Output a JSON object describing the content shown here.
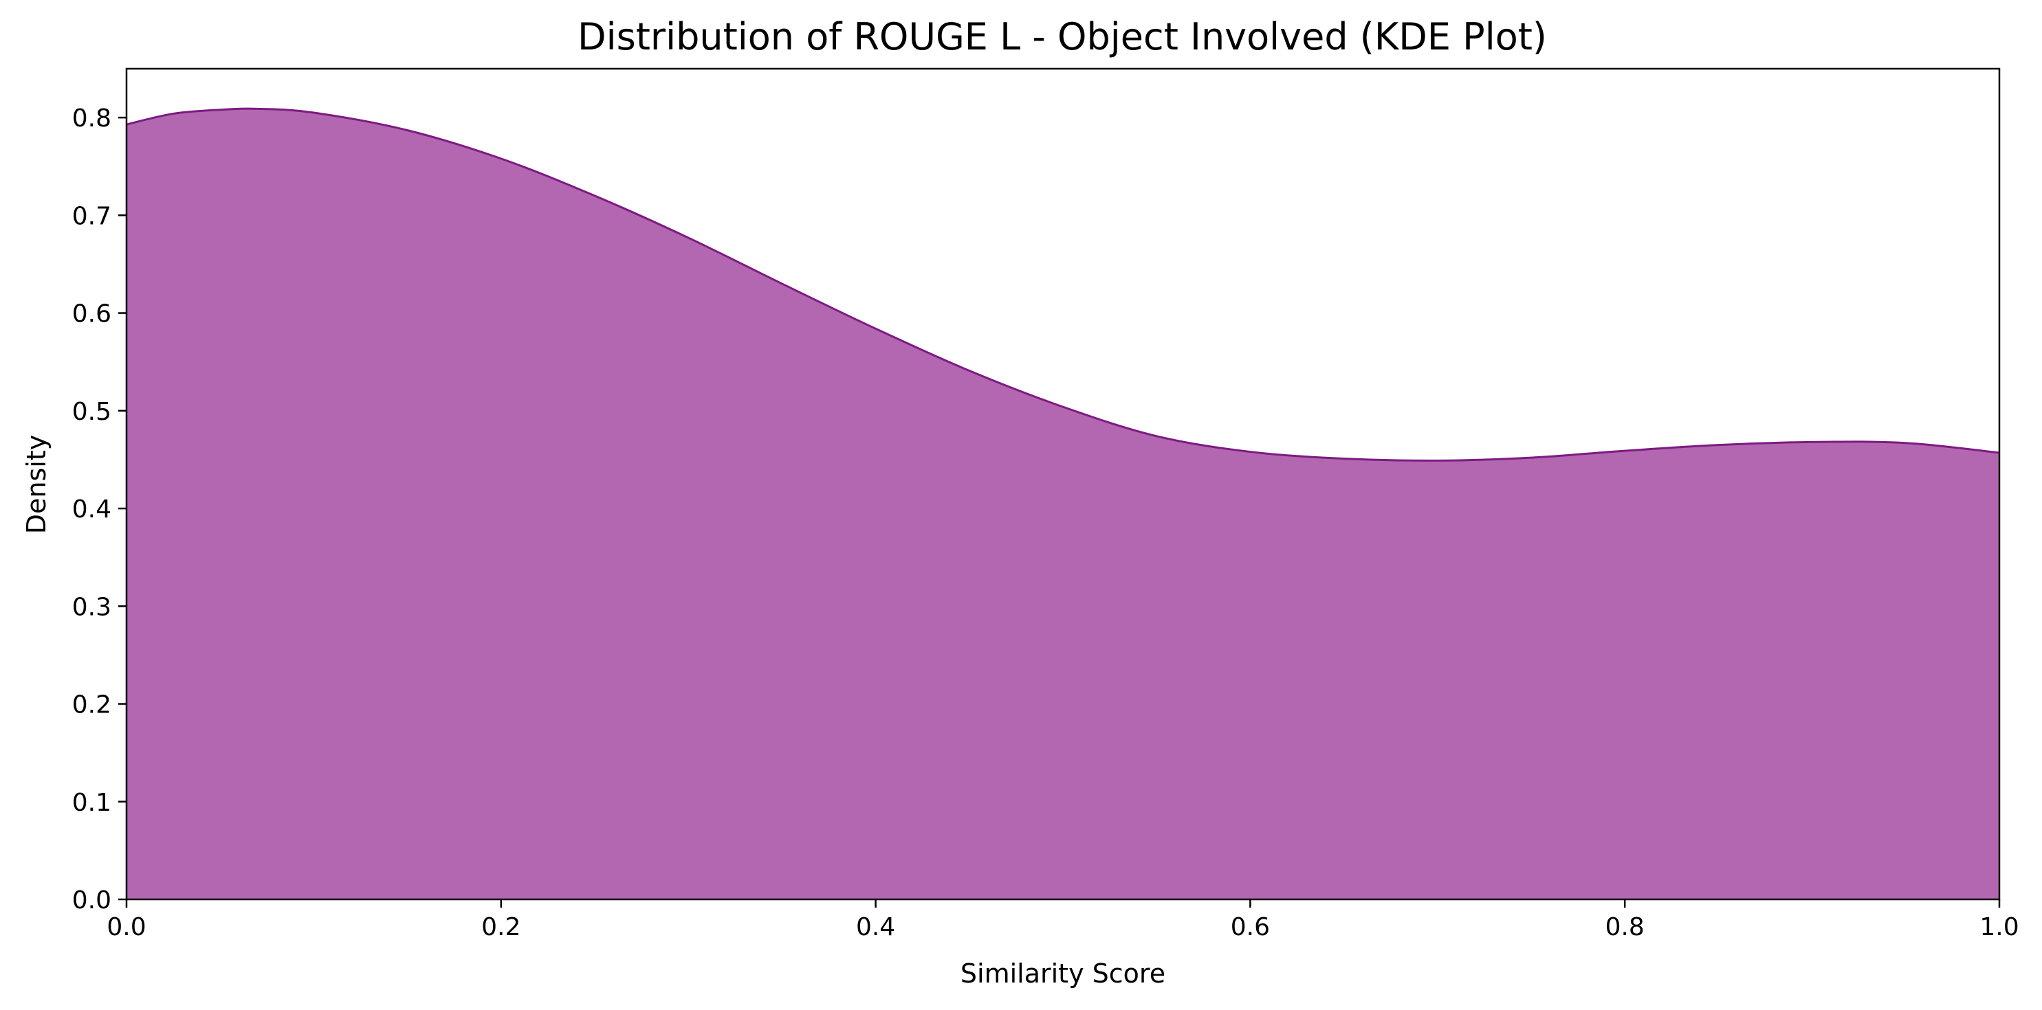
{
  "colors": {
    "fill": "#b267b0",
    "line": "#7d1b82",
    "axis": "#000000",
    "background": "#ffffff"
  },
  "chart_data": {
    "type": "area",
    "title": "Distribution of ROUGE L - Object Involved (KDE Plot)",
    "xlabel": "Similarity Score",
    "ylabel": "Density",
    "xlim": [
      0.0,
      1.0
    ],
    "ylim": [
      0.0,
      0.85
    ],
    "grid": false,
    "legend": "none",
    "xticks": [
      0.0,
      0.2,
      0.4,
      0.6,
      0.8,
      1.0
    ],
    "xtick_labels": [
      "0.0",
      "0.2",
      "0.4",
      "0.6",
      "0.8",
      "1.0"
    ],
    "yticks": [
      0.0,
      0.1,
      0.2,
      0.3,
      0.4,
      0.5,
      0.6,
      0.7,
      0.8
    ],
    "ytick_labels": [
      "0.0",
      "0.1",
      "0.2",
      "0.3",
      "0.4",
      "0.5",
      "0.6",
      "0.7",
      "0.8"
    ],
    "series": [
      {
        "name": "ROUGE L - Object Involved",
        "x": [
          0.0,
          0.025,
          0.05,
          0.07,
          0.1,
          0.15,
          0.2,
          0.25,
          0.3,
          0.35,
          0.4,
          0.45,
          0.5,
          0.55,
          0.6,
          0.65,
          0.7,
          0.75,
          0.8,
          0.85,
          0.9,
          0.95,
          1.0
        ],
        "y": [
          0.793,
          0.804,
          0.808,
          0.809,
          0.805,
          0.787,
          0.758,
          0.72,
          0.677,
          0.63,
          0.584,
          0.541,
          0.504,
          0.474,
          0.458,
          0.451,
          0.449,
          0.452,
          0.459,
          0.465,
          0.468,
          0.467,
          0.457
        ]
      }
    ]
  }
}
